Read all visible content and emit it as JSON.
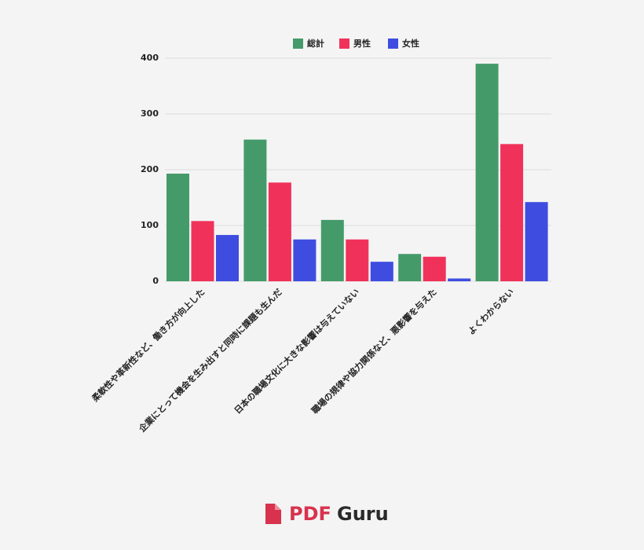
{
  "chart_data": {
    "type": "bar",
    "categories": [
      "柔軟性や革新性など、働き方が向上した",
      "企業にとって機会を生み出すと同時に課題も生んだ",
      "日本の職場文化に大きな影響は与えていない",
      "職場の規律や協力関係など、悪影響を与えた",
      "よくわからない"
    ],
    "series": [
      {
        "name": "総計",
        "color": "#459a6a",
        "values": [
          193,
          254,
          110,
          49,
          390
        ]
      },
      {
        "name": "男性",
        "color": "#f0325a",
        "values": [
          108,
          177,
          75,
          44,
          246
        ]
      },
      {
        "name": "女性",
        "color": "#3e4de0",
        "values": [
          83,
          75,
          35,
          5,
          142
        ]
      }
    ],
    "ylim": [
      0,
      400
    ],
    "yticks": [
      0,
      100,
      200,
      300,
      400
    ],
    "grid": true,
    "legend": "top"
  },
  "branding": {
    "logo": [
      "PDF",
      "Guru"
    ]
  }
}
